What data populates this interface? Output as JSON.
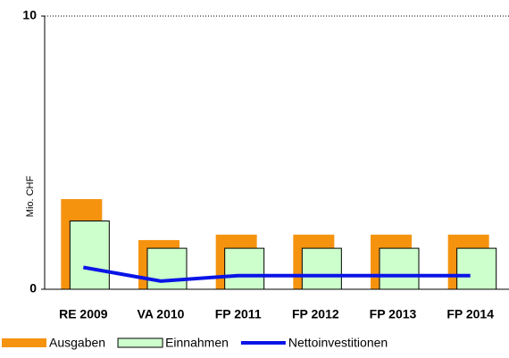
{
  "chart_data": {
    "type": "bar",
    "y_label": "Mio. CHF",
    "categories": [
      "RE 2009",
      "VA 2010",
      "FP 2011",
      "FP 2012",
      "FP 2013",
      "FP 2014"
    ],
    "series": [
      {
        "name": "Ausgaben",
        "color": "#f5930f",
        "type": "bar",
        "values": [
          3.3,
          1.8,
          2.0,
          2.0,
          2.0,
          2.0
        ]
      },
      {
        "name": "Einnahmen",
        "color": "#ccffcc",
        "type": "bar",
        "values": [
          2.5,
          1.5,
          1.5,
          1.5,
          1.5,
          1.5
        ]
      },
      {
        "name": "Nettoinvestitionen",
        "color": "#0a14e6",
        "type": "line",
        "values": [
          0.8,
          0.3,
          0.5,
          0.5,
          0.5,
          0.5
        ]
      }
    ],
    "ylim": [
      0,
      10
    ],
    "yticks": [
      0,
      10
    ],
    "grid": true,
    "legend": "bottom"
  }
}
